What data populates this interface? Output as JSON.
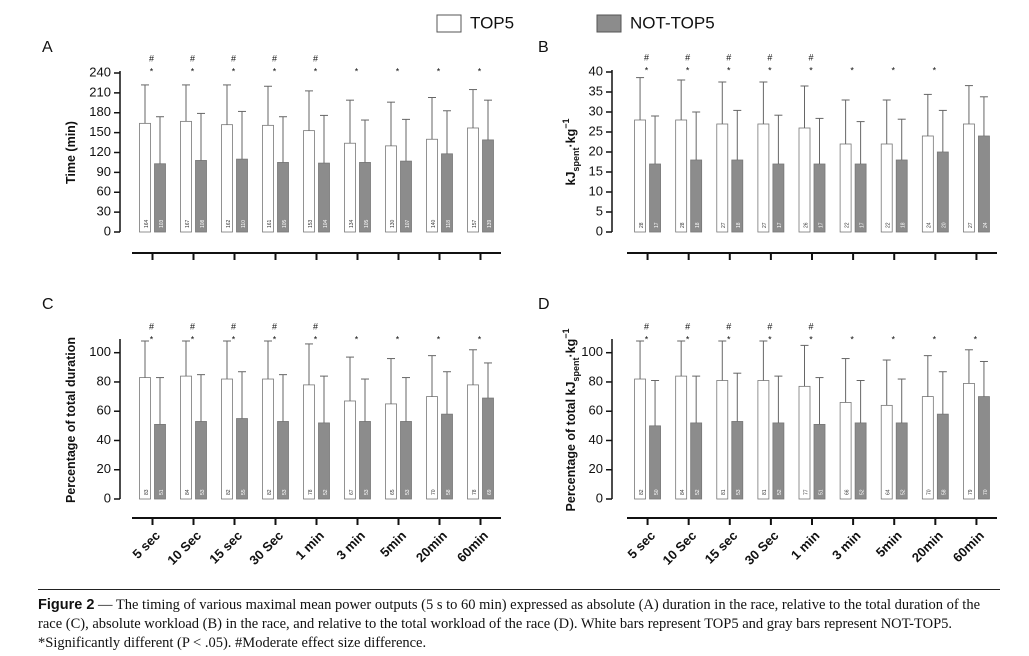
{
  "legend": [
    {
      "name": "TOP5",
      "color": "#ffffff"
    },
    {
      "name": "NOT-TOP5",
      "color": "#8c8c8c"
    }
  ],
  "chart_data": [
    {
      "type": "bar",
      "panel": "A",
      "y_label": [
        "Time (min)"
      ],
      "categories": [
        null,
        null,
        null,
        null,
        null,
        null,
        null,
        null,
        null
      ],
      "series": [
        {
          "values": [
            164,
            167,
            162,
            161,
            153,
            134,
            130,
            140,
            157
          ],
          "errors": [
            58,
            55,
            60,
            59,
            60,
            65,
            66,
            63,
            58
          ]
        },
        {
          "values": [
            103,
            108,
            110,
            105,
            104,
            105,
            107,
            118,
            139
          ],
          "errors": [
            71,
            71,
            72,
            69,
            72,
            64,
            63,
            65,
            60
          ]
        }
      ],
      "hash_marks": [
        "#",
        "#",
        "#",
        "#",
        "#",
        null,
        null,
        null,
        null
      ],
      "star_marks": [
        "*",
        "*",
        "*",
        "*",
        "*",
        "*",
        "*",
        "*",
        "*"
      ],
      "ylim": [
        0,
        240
      ],
      "yticks": [
        0,
        30,
        60,
        90,
        120,
        150,
        180,
        210,
        240
      ]
    },
    {
      "type": "bar",
      "panel": "B",
      "y_label": [
        "kJ",
        "spent",
        "·kg",
        "−1"
      ],
      "categories": [
        null,
        null,
        null,
        null,
        null,
        null,
        null,
        null,
        null
      ],
      "series": [
        {
          "values": [
            28,
            28,
            27,
            27,
            26,
            22,
            22,
            24,
            27
          ],
          "errors": [
            10.6,
            10,
            10.5,
            10.5,
            10.5,
            11,
            11,
            10.4,
            9.6
          ]
        },
        {
          "values": [
            17,
            18,
            18,
            17,
            17,
            17,
            18,
            20,
            24
          ],
          "errors": [
            12,
            12,
            12.4,
            12.2,
            11.4,
            10.6,
            10.2,
            10.4,
            9.8
          ]
        }
      ],
      "hash_marks": [
        "#",
        "#",
        "#",
        "#",
        "#",
        null,
        null,
        null,
        null
      ],
      "star_marks": [
        "*",
        "*",
        "*",
        "*",
        "*",
        "*",
        "*",
        "*",
        null
      ],
      "ylim": [
        0,
        40
      ],
      "yticks": [
        0,
        5,
        10,
        15,
        20,
        25,
        30,
        35,
        40
      ]
    },
    {
      "type": "bar",
      "panel": "C",
      "y_label": [
        "Percentage of total duration"
      ],
      "categories": [
        "5 sec",
        "10 Sec",
        "15 sec",
        "30 Sec",
        "1 min",
        "3 min",
        "5min",
        "20min",
        "60min"
      ],
      "series": [
        {
          "values": [
            83,
            84,
            82,
            82,
            78,
            67,
            65,
            70,
            78
          ],
          "errors": [
            25,
            24,
            26,
            26,
            28,
            30,
            31,
            28,
            24
          ]
        },
        {
          "values": [
            51,
            53,
            55,
            53,
            52,
            53,
            53,
            58,
            69
          ],
          "errors": [
            32,
            32,
            32,
            32,
            32,
            29,
            30,
            29,
            24
          ]
        }
      ],
      "hash_marks": [
        "#",
        "#",
        "#",
        "#",
        "#",
        null,
        null,
        null,
        null
      ],
      "star_marks": [
        "*",
        "*",
        "*",
        "*",
        "*",
        "*",
        "*",
        "*",
        "*"
      ],
      "ylim": [
        0,
        108
      ],
      "yticks": [
        0,
        20,
        40,
        60,
        80,
        100
      ]
    },
    {
      "type": "bar",
      "panel": "D",
      "y_label": [
        "Percentage of total kJ",
        "spent",
        "·kg",
        "−1"
      ],
      "categories": [
        "5 sec",
        "10 Sec",
        "15 sec",
        "30 Sec",
        "1 min",
        "3 min",
        "5min",
        "20min",
        "60min"
      ],
      "series": [
        {
          "values": [
            82,
            84,
            81,
            81,
            77,
            66,
            64,
            70,
            79
          ],
          "errors": [
            26,
            24,
            27,
            27,
            28,
            30,
            31,
            28,
            23
          ]
        },
        {
          "values": [
            50,
            52,
            53,
            52,
            51,
            52,
            52,
            58,
            70
          ],
          "errors": [
            31,
            32,
            33,
            32,
            32,
            29,
            30,
            29,
            24
          ]
        }
      ],
      "hash_marks": [
        "#",
        "#",
        "#",
        "#",
        "#",
        null,
        null,
        null,
        null
      ],
      "star_marks": [
        "*",
        "*",
        "*",
        "*",
        "*",
        "*",
        "*",
        "*",
        "*"
      ],
      "ylim": [
        0,
        108
      ],
      "yticks": [
        0,
        20,
        40,
        60,
        80,
        100
      ]
    }
  ],
  "caption": {
    "label": "Figure 2",
    "text": "— The timing of various maximal mean power outputs (5 s to 60 min) expressed as absolute (A) duration in the race, relative to the total duration of the race (C), absolute workload (B) in the race, and relative to the total workload of the race (D). White bars represent TOP5 and gray bars represent NOT-TOP5. *Significantly different (P < .05). #Moderate effect size difference."
  }
}
